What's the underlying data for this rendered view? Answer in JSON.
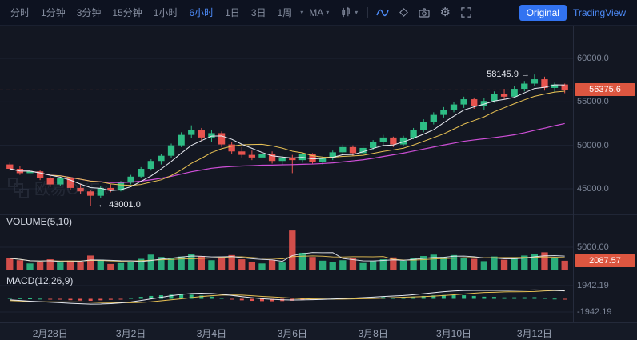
{
  "colors": {
    "up": "#2ebd85",
    "down": "#e8544f",
    "accent": "#4d8bf8",
    "badge": "#dd5640",
    "ma5": "#e8ebf2",
    "ma10": "#e9c254",
    "ma30": "#cf4fd8"
  },
  "toolbar": {
    "intervals": [
      {
        "label": "分时",
        "active": false
      },
      {
        "label": "1分钟",
        "active": false
      },
      {
        "label": "3分钟",
        "active": false
      },
      {
        "label": "15分钟",
        "active": false
      },
      {
        "label": "1小时",
        "active": false
      },
      {
        "label": "6小时",
        "active": true
      },
      {
        "label": "1日",
        "active": false
      },
      {
        "label": "3日",
        "active": false
      },
      {
        "label": "1周",
        "active": false
      }
    ],
    "ma_label": "MA",
    "original_label": "Original",
    "tradingview_label": "TradingView"
  },
  "watermark": "欧易OKEx",
  "indicators": {
    "volume_label": "VOLUME(5,10)",
    "macd_label": "MACD(12,26,9)"
  },
  "annotations": {
    "high_value": "58145.9",
    "arrow_right": "→",
    "arrow_left": "←",
    "low_value": "43001.0"
  },
  "badges": {
    "last_price": "56375.6",
    "current_volume": "2087.57"
  },
  "price_axis_labels": [
    "60000.0",
    "55000.0",
    "50000.0",
    "45000.0"
  ],
  "volume_axis_label": "5000.00",
  "macd_axis_labels": [
    "1942.19",
    "-1942.19"
  ],
  "chart_data": {
    "type": "candlestick",
    "interval": "6小时",
    "price_axis_ticks": [
      60000,
      55000,
      50000,
      45000
    ],
    "volume_axis_tick": 5000,
    "macd_axis_ticks": [
      1942.19,
      -1942.19
    ],
    "last_price": 56375.6,
    "high_annotation": 58145.9,
    "low_annotation": 43001.0,
    "current_volume": 2087.57,
    "time_ticks": [
      {
        "label": "2月28日",
        "index": 4
      },
      {
        "label": "3月2日",
        "index": 12
      },
      {
        "label": "3月4日",
        "index": 20
      },
      {
        "label": "3月6日",
        "index": 28
      },
      {
        "label": "3月8日",
        "index": 36
      },
      {
        "label": "3月10日",
        "index": 44
      },
      {
        "label": "3月12日",
        "index": 52
      }
    ],
    "candles": [
      [
        47800,
        48000,
        47100,
        47300,
        2600
      ],
      [
        47300,
        47600,
        46600,
        46800,
        2200
      ],
      [
        46800,
        47200,
        46300,
        47000,
        1500
      ],
      [
        47000,
        47100,
        46000,
        46200,
        1800
      ],
      [
        46200,
        46500,
        45200,
        45500,
        2400
      ],
      [
        45500,
        46400,
        45300,
        46200,
        1700
      ],
      [
        46200,
        46300,
        44900,
        45100,
        2100
      ],
      [
        45100,
        45600,
        44400,
        44700,
        1900
      ],
      [
        44700,
        44900,
        43001,
        44200,
        3200
      ],
      [
        44200,
        45300,
        43900,
        45100,
        2300
      ],
      [
        45100,
        45500,
        44600,
        44800,
        1400
      ],
      [
        44800,
        45900,
        44700,
        45700,
        1600
      ],
      [
        45700,
        46600,
        45500,
        46400,
        1800
      ],
      [
        46400,
        47500,
        46200,
        47300,
        2500
      ],
      [
        47300,
        48400,
        47100,
        48200,
        3400
      ],
      [
        48200,
        49000,
        47800,
        48800,
        2900
      ],
      [
        48800,
        50200,
        48600,
        50000,
        2600
      ],
      [
        50000,
        51500,
        49800,
        51200,
        3000
      ],
      [
        51200,
        52300,
        50800,
        51800,
        3600
      ],
      [
        51800,
        52000,
        50500,
        50900,
        3100
      ],
      [
        50900,
        51800,
        50400,
        51400,
        2200
      ],
      [
        51400,
        51600,
        49800,
        50100,
        2800
      ],
      [
        50100,
        50400,
        49000,
        49300,
        3300
      ],
      [
        49300,
        49800,
        48600,
        48900,
        2400
      ],
      [
        48900,
        49400,
        48300,
        48600,
        1900
      ],
      [
        48600,
        49200,
        48200,
        49000,
        1500
      ],
      [
        49000,
        49300,
        47900,
        48200,
        2300
      ],
      [
        48200,
        48800,
        47800,
        48600,
        1700
      ],
      [
        48600,
        48900,
        46800,
        48300,
        8600
      ],
      [
        48300,
        49200,
        48000,
        49000,
        3800
      ],
      [
        49000,
        49100,
        47900,
        48100,
        2900
      ],
      [
        48100,
        48700,
        47800,
        48500,
        2100
      ],
      [
        48500,
        49400,
        48300,
        49200,
        1800
      ],
      [
        49200,
        50100,
        48900,
        49800,
        2200
      ],
      [
        49800,
        50000,
        48800,
        49100,
        2600
      ],
      [
        49100,
        49900,
        48900,
        49700,
        1600
      ],
      [
        49700,
        50600,
        49500,
        50400,
        2000
      ],
      [
        50400,
        51200,
        50000,
        50900,
        2400
      ],
      [
        50900,
        51000,
        49800,
        50100,
        2800
      ],
      [
        50100,
        51100,
        49900,
        50900,
        2100
      ],
      [
        50900,
        52000,
        50700,
        51800,
        2600
      ],
      [
        51800,
        53000,
        51500,
        52700,
        3100
      ],
      [
        52700,
        53800,
        52400,
        53500,
        3400
      ],
      [
        53500,
        54400,
        53200,
        54100,
        2900
      ],
      [
        54100,
        55000,
        53800,
        54700,
        3300
      ],
      [
        54700,
        55600,
        54300,
        55300,
        2700
      ],
      [
        55300,
        55500,
        54200,
        54500,
        2500
      ],
      [
        54500,
        55400,
        54100,
        55100,
        2000
      ],
      [
        55100,
        56200,
        54900,
        55900,
        3000
      ],
      [
        55900,
        56500,
        55300,
        55600,
        2300
      ],
      [
        55600,
        56800,
        55400,
        56500,
        2700
      ],
      [
        56500,
        57400,
        56200,
        57100,
        3200
      ],
      [
        57100,
        58145.9,
        56800,
        57600,
        3600
      ],
      [
        57600,
        57900,
        56300,
        56600,
        3900
      ],
      [
        56600,
        57200,
        56100,
        57000,
        2600
      ],
      [
        57000,
        57100,
        56000,
        56375.6,
        2087.57
      ]
    ],
    "macd": {
      "dif": [
        -150,
        -250,
        -350,
        -420,
        -500,
        -580,
        -660,
        -720,
        -780,
        -760,
        -700,
        -600,
        -450,
        -250,
        -20,
        220,
        450,
        640,
        780,
        820,
        780,
        660,
        500,
        320,
        160,
        20,
        -80,
        -140,
        -170,
        -160,
        -130,
        -90,
        -30,
        40,
        110,
        170,
        250,
        340,
        410,
        480,
        600,
        750,
        900,
        1040,
        1150,
        1220,
        1240,
        1230,
        1240,
        1230,
        1250,
        1280,
        1310,
        1280,
        1230,
        1160
      ],
      "hist": [
        120,
        80,
        60,
        20,
        -60,
        -120,
        -200,
        -260,
        -300,
        -220,
        -140,
        -40,
        120,
        280,
        420,
        520,
        600,
        640,
        600,
        480,
        320,
        120,
        -60,
        -220,
        -300,
        -340,
        -360,
        -330,
        -280,
        -180,
        -120,
        -60,
        20,
        90,
        130,
        150,
        200,
        250,
        230,
        240,
        320,
        420,
        500,
        550,
        560,
        520,
        420,
        310,
        280,
        210,
        220,
        230,
        240,
        120,
        30,
        -40
      ]
    }
  }
}
